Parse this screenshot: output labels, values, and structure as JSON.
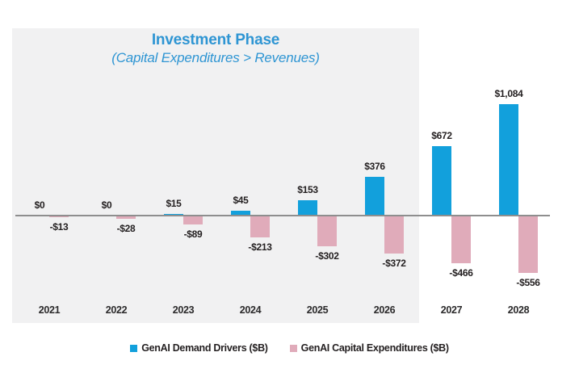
{
  "title": "Investment Phase",
  "subtitle": "(Capital Expenditures > Revenues)",
  "legend": [
    {
      "label": "GenAI Demand Drivers ($B)",
      "color": "#12a0dc"
    },
    {
      "label": "GenAI Capital Expenditures ($B)",
      "color": "#e0abba"
    }
  ],
  "chart_data": {
    "type": "bar",
    "title": "Investment Phase",
    "subtitle": "(Capital Expenditures > Revenues)",
    "categories": [
      "2021",
      "2022",
      "2023",
      "2024",
      "2025",
      "2026",
      "2027",
      "2028"
    ],
    "series": [
      {
        "name": "GenAI Demand Drivers ($B)",
        "color": "#12a0dc",
        "values": [
          0,
          0,
          15,
          45,
          153,
          376,
          672,
          1084
        ],
        "labels": [
          "$0",
          "$0",
          "$15",
          "$45",
          "$153",
          "$376",
          "$672",
          "$1,084"
        ]
      },
      {
        "name": "GenAI Capital Expenditures ($B)",
        "color": "#e0abba",
        "values": [
          -13,
          -28,
          -89,
          -213,
          -302,
          -372,
          -466,
          -556
        ],
        "labels": [
          "-$13",
          "-$28",
          "-$89",
          "-$213",
          "-$302",
          "-$372",
          "-$466",
          "-$556"
        ]
      }
    ],
    "baseline": 0,
    "grid": false,
    "y_axis_shown": false,
    "legend_position": "bottom",
    "shaded_region": {
      "label": "Investment Phase (Capital Expenditures > Revenues)",
      "categories": [
        "2021",
        "2022",
        "2023",
        "2024",
        "2025",
        "2026"
      ],
      "color": "#f1f1f2"
    }
  }
}
